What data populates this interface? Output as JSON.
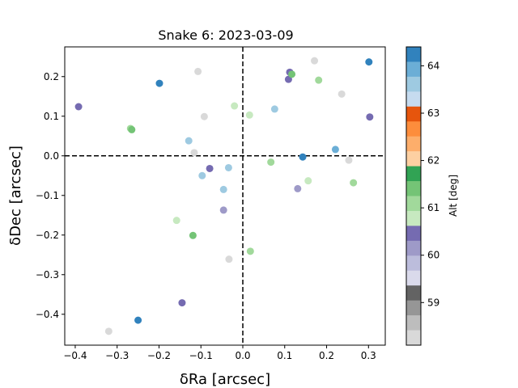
{
  "chart_data": {
    "type": "scatter",
    "title": "Snake 6: 2023-03-09",
    "xlabel": "δRa [arcsec]",
    "ylabel": "δDec [arcsec]",
    "xlim": [
      -0.425,
      0.34
    ],
    "ylim": [
      -0.478,
      0.275
    ],
    "xticks": [
      -0.4,
      -0.3,
      -0.2,
      -0.1,
      0.0,
      0.1,
      0.2,
      0.3
    ],
    "xtick_labels": [
      "−0.4",
      "−0.3",
      "−0.2",
      "−0.1",
      "0.0",
      "0.1",
      "0.2",
      "0.3"
    ],
    "yticks": [
      0.2,
      0.1,
      0.0,
      -0.1,
      -0.2,
      -0.3,
      -0.4
    ],
    "ytick_labels": [
      "0.2",
      "0.1",
      "0.0",
      "−0.1",
      "−0.2",
      "−0.3",
      "−0.4"
    ],
    "reference_lines": {
      "x": 0.0,
      "y": 0.0,
      "style": "dashed"
    },
    "grid": false,
    "colorbar": {
      "label": "Alt [deg]",
      "range": [
        58.1,
        64.4
      ],
      "ticks": [
        59,
        60,
        61,
        62,
        63,
        64
      ],
      "colormap": "tab20c",
      "colors": [
        "#3182bd",
        "#6baed6",
        "#9ecae1",
        "#c6dbef",
        "#e6550d",
        "#fd8d3c",
        "#fdae6b",
        "#fdd0a2",
        "#31a354",
        "#74c476",
        "#a1d99b",
        "#c7e9c0",
        "#756bb1",
        "#9e9ac8",
        "#bcbddc",
        "#dadaeb",
        "#636363",
        "#969696",
        "#bdbdbd",
        "#d9d9d9"
      ]
    },
    "points": [
      {
        "x": -0.392,
        "y": 0.124,
        "c": "#756bb1"
      },
      {
        "x": -0.199,
        "y": 0.183,
        "c": "#3182bd"
      },
      {
        "x": -0.268,
        "y": 0.069,
        "c": "#a1d99b"
      },
      {
        "x": -0.265,
        "y": 0.066,
        "c": "#74c476"
      },
      {
        "x": -0.107,
        "y": 0.213,
        "c": "#d9d9d9"
      },
      {
        "x": -0.092,
        "y": 0.099,
        "c": "#d9d9d9"
      },
      {
        "x": -0.129,
        "y": 0.038,
        "c": "#9ecae1"
      },
      {
        "x": -0.116,
        "y": 0.008,
        "c": "#d9d9d9"
      },
      {
        "x": -0.079,
        "y": -0.032,
        "c": "#756bb1"
      },
      {
        "x": -0.097,
        "y": -0.05,
        "c": "#9ecae1"
      },
      {
        "x": -0.034,
        "y": -0.03,
        "c": "#9ecae1"
      },
      {
        "x": -0.046,
        "y": -0.085,
        "c": "#9ecae1"
      },
      {
        "x": -0.046,
        "y": -0.137,
        "c": "#9e9ac8"
      },
      {
        "x": -0.158,
        "y": -0.163,
        "c": "#c7e9c0"
      },
      {
        "x": -0.119,
        "y": -0.201,
        "c": "#74c476"
      },
      {
        "x": -0.033,
        "y": -0.261,
        "c": "#d9d9d9"
      },
      {
        "x": 0.018,
        "y": -0.241,
        "c": "#a1d99b"
      },
      {
        "x": -0.145,
        "y": -0.371,
        "c": "#756bb1"
      },
      {
        "x": -0.25,
        "y": -0.415,
        "c": "#3182bd"
      },
      {
        "x": -0.32,
        "y": -0.443,
        "c": "#d9d9d9"
      },
      {
        "x": -0.02,
        "y": 0.126,
        "c": "#c7e9c0"
      },
      {
        "x": 0.016,
        "y": 0.103,
        "c": "#c7e9c0"
      },
      {
        "x": 0.076,
        "y": 0.118,
        "c": "#9ecae1"
      },
      {
        "x": 0.109,
        "y": 0.193,
        "c": "#756bb1"
      },
      {
        "x": 0.112,
        "y": 0.211,
        "c": "#756bb1"
      },
      {
        "x": 0.117,
        "y": 0.206,
        "c": "#74c476"
      },
      {
        "x": 0.171,
        "y": 0.24,
        "c": "#d9d9d9"
      },
      {
        "x": 0.181,
        "y": 0.191,
        "c": "#a1d99b"
      },
      {
        "x": 0.236,
        "y": 0.156,
        "c": "#d9d9d9"
      },
      {
        "x": 0.301,
        "y": 0.237,
        "c": "#3182bd"
      },
      {
        "x": 0.303,
        "y": 0.098,
        "c": "#756bb1"
      },
      {
        "x": 0.221,
        "y": 0.016,
        "c": "#6baed6"
      },
      {
        "x": 0.143,
        "y": -0.003,
        "c": "#3182bd"
      },
      {
        "x": 0.067,
        "y": -0.016,
        "c": "#a1d99b"
      },
      {
        "x": 0.253,
        "y": -0.011,
        "c": "#d9d9d9"
      },
      {
        "x": 0.156,
        "y": -0.063,
        "c": "#c7e9c0"
      },
      {
        "x": 0.131,
        "y": -0.083,
        "c": "#9e9ac8"
      },
      {
        "x": 0.264,
        "y": -0.068,
        "c": "#a1d99b"
      }
    ]
  }
}
